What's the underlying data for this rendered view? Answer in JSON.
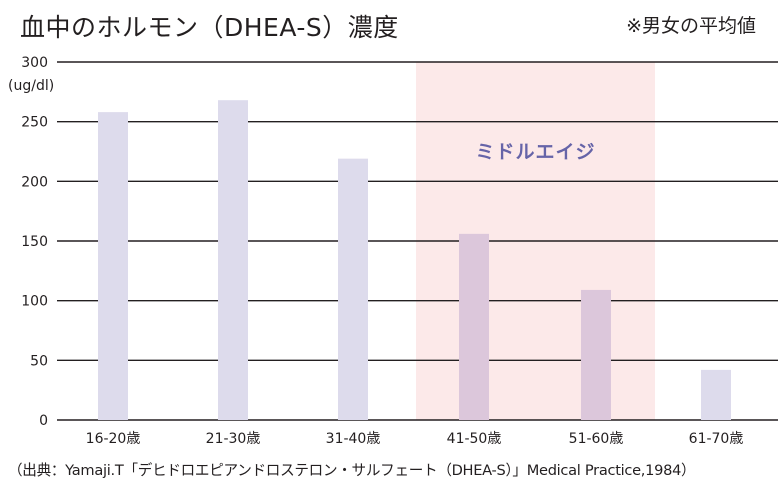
{
  "title": "血中のホルモン（DHEA-S）濃度",
  "note": "※男女の平均値",
  "source": "（出典：Yamaji.T「デヒドロエピアンドロステロン・サルフェート（DHEA-S）」Medical Practice,1984）",
  "colors": {
    "bar": "#dddbec",
    "bar_highlight": "#dcc7db",
    "band": "#fce9e9",
    "band_label": "#6664a8",
    "grid": "#231f20"
  },
  "chart_data": {
    "type": "bar",
    "title": "血中のホルモン（DHEA-S）濃度",
    "ylabel": "(ug/dl)",
    "xlabel": "",
    "categories": [
      "16-20歳",
      "21-30歳",
      "31-40歳",
      "41-50歳",
      "51-60歳",
      "61-70歳"
    ],
    "values": [
      258,
      268,
      219,
      156,
      109,
      42
    ],
    "ylim": [
      0,
      300
    ],
    "yticks": [
      0,
      50,
      100,
      150,
      200,
      250,
      300
    ],
    "grid": true,
    "highlight": {
      "label": "ミドルエイジ",
      "categories": [
        "41-50歳",
        "51-60歳"
      ]
    }
  }
}
